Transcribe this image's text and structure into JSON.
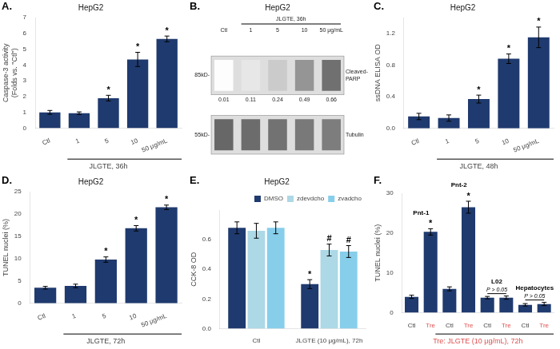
{
  "chart_data": [
    {
      "type": "bar",
      "panel_label": "A.",
      "title": "HepG2",
      "categories": [
        "Ctl",
        "1",
        "5",
        "10",
        "50 μg/mL"
      ],
      "values": [
        1.0,
        0.95,
        1.9,
        4.35,
        5.65
      ],
      "errors": [
        0.12,
        0.08,
        0.18,
        0.45,
        0.18
      ],
      "sig_labels": [
        null,
        null,
        "*",
        "*",
        "*"
      ],
      "color": "#1F3A6E",
      "ylabel": "Caspase-3 activity (Folds vs. \"Ctl\")",
      "xlabel": "JLGTE, 36h",
      "ylim": [
        0,
        7
      ],
      "yticks": [
        0,
        1,
        2,
        3,
        4,
        5,
        6,
        7
      ],
      "grid": false
    },
    {
      "type": "blot",
      "panel_label": "B.",
      "title": "HepG2",
      "subtitle": "JLGTE, 36h",
      "categories": [
        "Ctl",
        "1",
        "5",
        "10",
        "50 μg/mL"
      ],
      "series": [
        {
          "name": "Cleaved-\nPARP",
          "kd_label": "85kD-",
          "values": [
            0.01,
            0.11,
            0.24,
            0.49,
            0.66
          ],
          "data_labels": true
        },
        {
          "name": "Tubulin",
          "kd_label": "55kD-",
          "values": [
            0.7,
            0.68,
            0.65,
            0.62,
            0.6
          ]
        }
      ]
    },
    {
      "type": "bar",
      "panel_label": "C.",
      "title": "HepG2",
      "categories": [
        "Ctl",
        "1",
        "5",
        "10",
        "50 μg/mL"
      ],
      "values": [
        0.15,
        0.13,
        0.37,
        0.88,
        1.15
      ],
      "errors": [
        0.04,
        0.04,
        0.05,
        0.06,
        0.13
      ],
      "sig_labels": [
        null,
        null,
        "*",
        "*",
        "*"
      ],
      "color": "#1F3A6E",
      "ylabel": "ssDNA ELISA OD",
      "xlabel": "JLGTE, 48h",
      "ylim": [
        0,
        1.4
      ],
      "yticks": [
        {
          "value": 0,
          "label": "0.0"
        },
        0.4,
        0.8,
        1.2
      ],
      "grid": false
    },
    {
      "type": "bar",
      "panel_label": "D.",
      "title": "HepG2",
      "categories": [
        "Ctl",
        "1",
        "5",
        "10",
        "50 μg/mL"
      ],
      "values": [
        3.5,
        3.9,
        9.8,
        16.8,
        21.5
      ],
      "errors": [
        0.3,
        0.4,
        0.6,
        0.6,
        0.5
      ],
      "sig_labels": [
        null,
        null,
        "*",
        "*",
        "*"
      ],
      "color": "#1F3A6E",
      "ylabel": "TUNEL nuclei (%)",
      "xlabel": "JLGTE, 72h",
      "ylim": [
        0,
        25
      ],
      "yticks": [
        0,
        5,
        10,
        15,
        20,
        25
      ],
      "grid": false
    },
    {
      "type": "bar",
      "panel_label": "E.",
      "title": "HepG2",
      "categories": [
        "Ctl",
        "JLGTE (10 μg/mL), 72h"
      ],
      "series": [
        {
          "name": "DMSO",
          "color": "#1F3A6E",
          "values": [
            0.68,
            0.3
          ],
          "errors": [
            0.04,
            0.03
          ],
          "sig_labels": [
            null,
            "*"
          ]
        },
        {
          "name": "zdevdcho",
          "color": "#ADD8E6",
          "values": [
            0.66,
            0.53
          ],
          "errors": [
            0.05,
            0.04
          ],
          "sig_labels": [
            null,
            "#"
          ]
        },
        {
          "name": "zvadcho",
          "color": "#87CEEB",
          "values": [
            0.68,
            0.52
          ],
          "errors": [
            0.04,
            0.04
          ],
          "sig_labels": [
            null,
            "#"
          ]
        }
      ],
      "ylabel": "CCK-8 OD",
      "ylim": [
        0,
        0.8
      ],
      "yticks": [
        {
          "value": 0,
          "label": "0.0"
        },
        0.2,
        0.4,
        0.6
      ],
      "legend": "upper right",
      "grid": false
    },
    {
      "type": "bar",
      "panel_label": "F.",
      "categories": [
        "Ctl",
        "Tre",
        "Ctl",
        "Tre",
        "Ctl",
        "Tre",
        "Ctl",
        "Tre"
      ],
      "values": [
        4.0,
        20.3,
        6.0,
        26.5,
        3.8,
        3.8,
        2.0,
        2.2
      ],
      "errors": [
        0.4,
        0.8,
        0.5,
        1.5,
        0.3,
        0.4,
        0.3,
        0.4
      ],
      "sig_labels": [
        null,
        "*",
        null,
        "*",
        null,
        null,
        null,
        null
      ],
      "color": "#1F3A6E",
      "tick_label_colors": [
        null,
        "#E05050",
        null,
        "#E05050",
        null,
        "#E05050",
        null,
        "#E05050"
      ],
      "group_labels": [
        "Pnt-1",
        "Pnt-2",
        "L02",
        "Hepatocytes"
      ],
      "bracket_labels": [
        null,
        null,
        "P > 0.05",
        "P > 0.05"
      ],
      "ylabel": "TUNEL nuclei (%)",
      "xlabel": "Tre: JLGTE (10 μg/mL), 72h",
      "xlabel_color": "#E05050",
      "ylim": [
        0,
        30
      ],
      "yticks": [
        0,
        10,
        20,
        30
      ],
      "grid": false
    }
  ]
}
